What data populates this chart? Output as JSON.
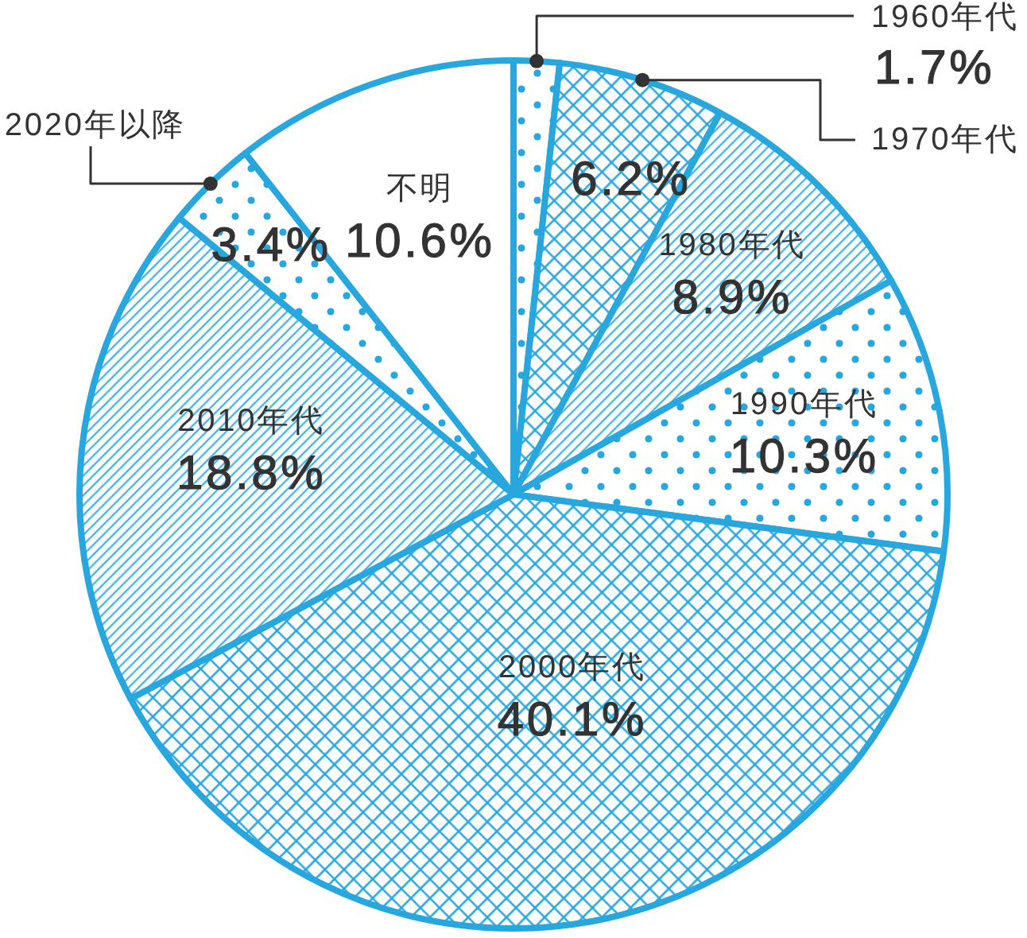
{
  "chart_data": {
    "type": "pie",
    "categories": [
      "1960年代",
      "1970年代",
      "1980年代",
      "1990年代",
      "2000年代",
      "2010年代",
      "2020年以降",
      "不明"
    ],
    "values": [
      1.7,
      6.2,
      8.9,
      10.3,
      40.1,
      18.8,
      3.4,
      10.6
    ],
    "colors": [
      "#27a7de",
      "#27a7de",
      "#27a7de",
      "#27a7de",
      "#27a7de",
      "#27a7de",
      "#27a7de",
      "#ffffff"
    ],
    "value_labels": [
      "1.7%",
      "6.2%",
      "8.9%",
      "10.3%",
      "40.1%",
      "18.8%",
      "3.4%",
      "10.6%"
    ]
  }
}
